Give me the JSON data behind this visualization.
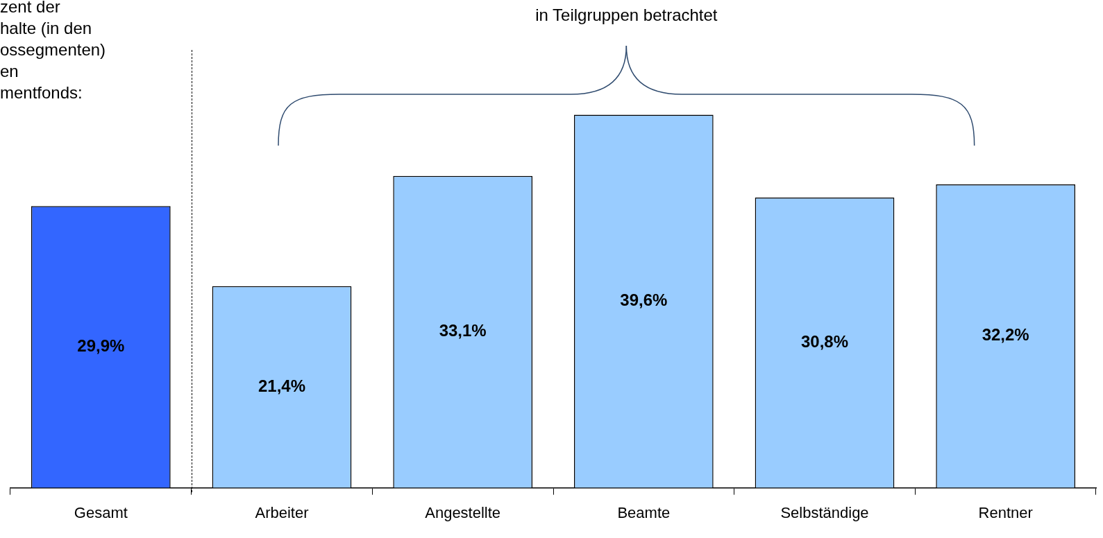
{
  "chart_data": {
    "type": "bar",
    "categories": [
      "Gesamt",
      "Arbeiter",
      "Angestellte",
      "Beamte",
      "Selbständige",
      "Rentner"
    ],
    "values": [
      29.9,
      21.4,
      33.1,
      39.6,
      30.8,
      32.2
    ],
    "colors": [
      "#3366ff",
      "#99ccff",
      "#99ccff",
      "#99ccff",
      "#99ccff",
      "#99ccff"
    ],
    "value_labels": [
      "29,9%",
      "21,4%",
      "33,1%",
      "39,6%",
      "30,8%",
      "32,2%"
    ],
    "annotations": [
      "zent der\nhalte (in den\nossegmenten)\nen\nmentfonds:",
      "in Teilgruppen betrachtet"
    ],
    "grid": false,
    "legend": false
  }
}
